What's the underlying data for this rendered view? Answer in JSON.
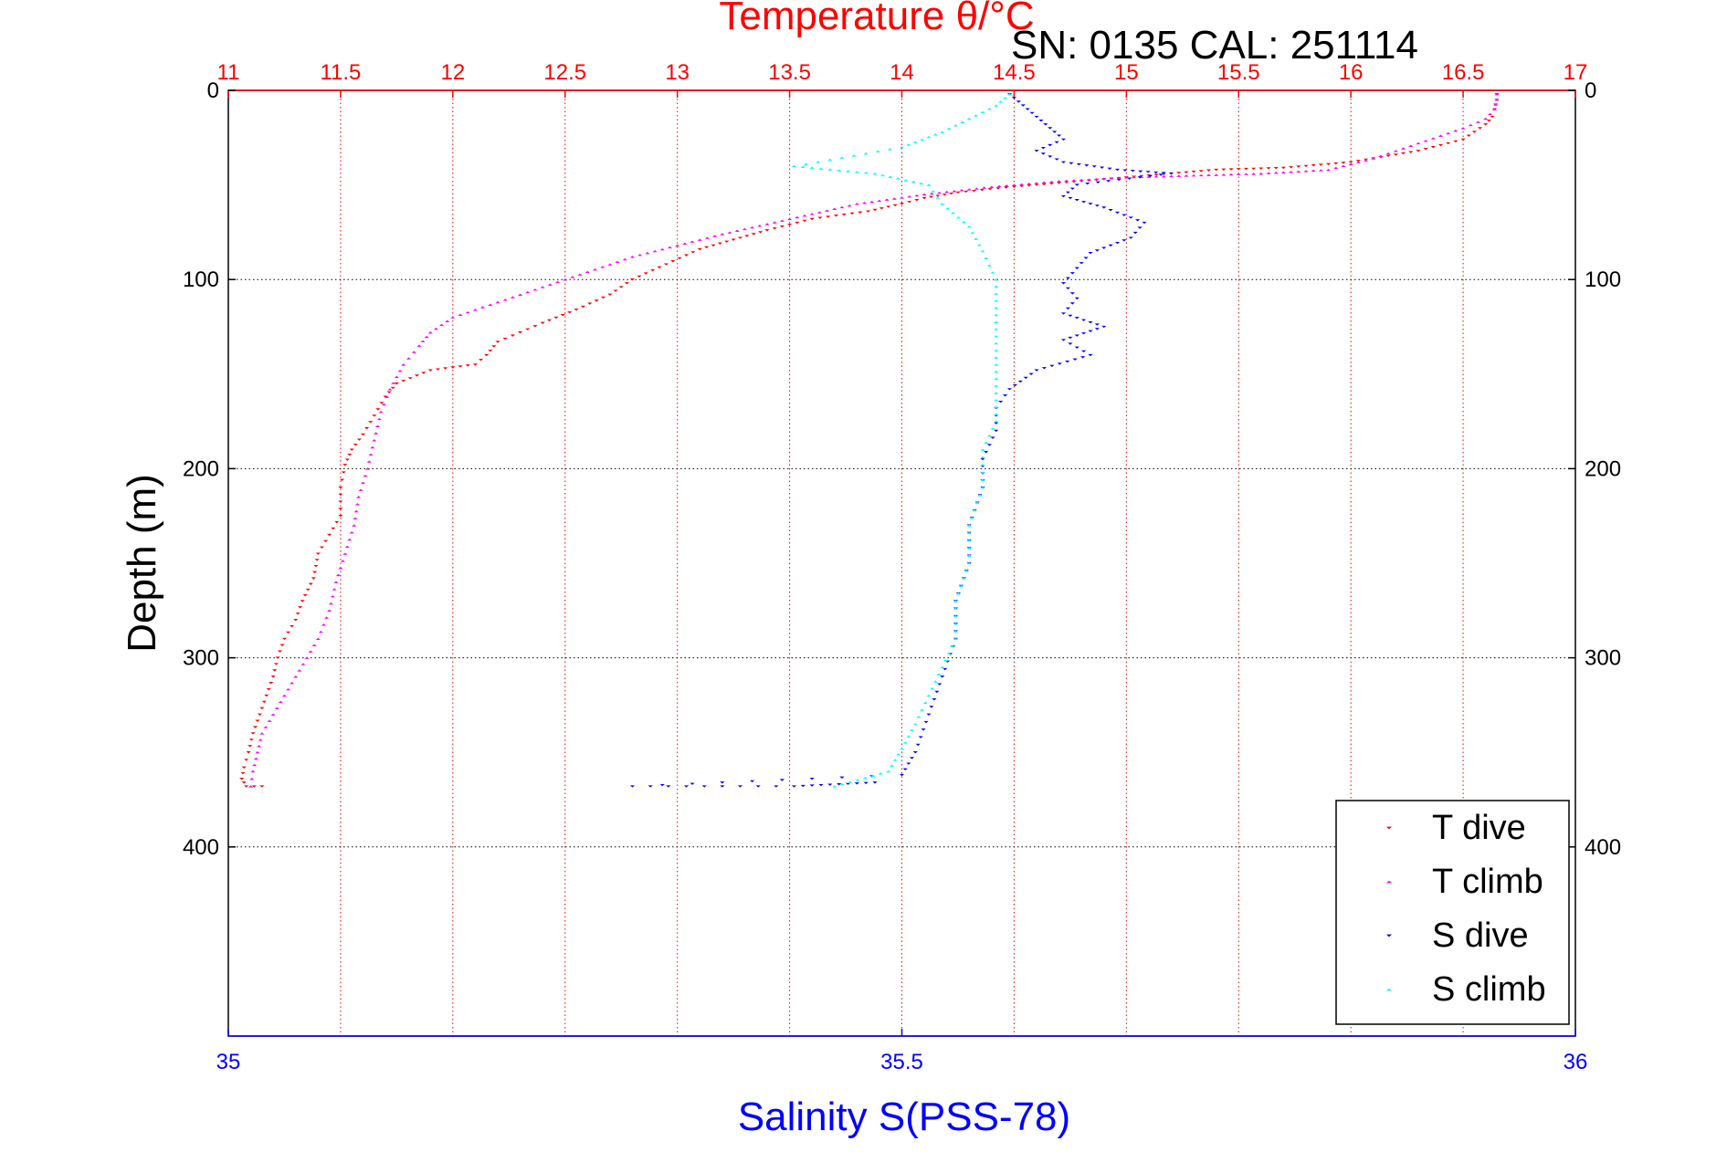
{
  "chart_data": {
    "type": "scatter",
    "title": "Temperature θ/°C",
    "subtitle": "SN: 0135  CAL: 251114",
    "xlabel_top": "Temperature θ/°C",
    "xlabel_bottom": "Salinity S(PSS-78)",
    "ylabel": "Depth (m)",
    "temperature_axis": {
      "range": [
        11,
        17
      ],
      "ticks": [
        11,
        11.5,
        12,
        12.5,
        13,
        13.5,
        14,
        14.5,
        15,
        15.5,
        16,
        16.5,
        17
      ],
      "tick_labels": [
        "11",
        "11.5",
        "12",
        "12.5",
        "13",
        "13.5",
        "14",
        "14.5",
        "15",
        "15.5",
        "16",
        "16.5",
        "17"
      ],
      "color": "#ff0000"
    },
    "salinity_axis": {
      "range": [
        35,
        36
      ],
      "ticks": [
        35,
        35.5,
        36
      ],
      "tick_labels": [
        "35",
        "35.5",
        "36"
      ],
      "color": "#0000ff"
    },
    "depth_axis": {
      "range": [
        0,
        500
      ],
      "reversed": true,
      "ticks": [
        0,
        100,
        200,
        300,
        400
      ],
      "tick_labels": [
        "0",
        "100",
        "200",
        "300",
        "400"
      ]
    },
    "grid": true,
    "legend_position": "bottom-right",
    "series": [
      {
        "name": "T dive",
        "axis": "temperature",
        "color": "#ff0000",
        "marker": "triangle-down",
        "points": [
          [
            16.65,
            2
          ],
          [
            16.65,
            5
          ],
          [
            16.64,
            10
          ],
          [
            16.63,
            14
          ],
          [
            16.6,
            18
          ],
          [
            16.55,
            22
          ],
          [
            16.5,
            26
          ],
          [
            16.3,
            32
          ],
          [
            16.0,
            38
          ],
          [
            15.7,
            41
          ],
          [
            15.4,
            42
          ],
          [
            15.1,
            45
          ],
          [
            14.8,
            48
          ],
          [
            14.5,
            51
          ],
          [
            14.25,
            54
          ],
          [
            14.1,
            57
          ],
          [
            14.0,
            60
          ],
          [
            13.85,
            64
          ],
          [
            13.6,
            68
          ],
          [
            13.4,
            74
          ],
          [
            13.25,
            79
          ],
          [
            13.1,
            84
          ],
          [
            12.95,
            92
          ],
          [
            12.8,
            100
          ],
          [
            12.7,
            108
          ],
          [
            12.55,
            116
          ],
          [
            12.4,
            123
          ],
          [
            12.3,
            128
          ],
          [
            12.2,
            133
          ],
          [
            12.15,
            140
          ],
          [
            12.1,
            145
          ],
          [
            11.9,
            148
          ],
          [
            11.75,
            155
          ],
          [
            11.7,
            162
          ],
          [
            11.65,
            172
          ],
          [
            11.6,
            182
          ],
          [
            11.55,
            190
          ],
          [
            11.52,
            198
          ],
          [
            11.5,
            210
          ],
          [
            11.5,
            225
          ],
          [
            11.45,
            235
          ],
          [
            11.4,
            245
          ],
          [
            11.38,
            258
          ],
          [
            11.33,
            270
          ],
          [
            11.3,
            280
          ],
          [
            11.25,
            290
          ],
          [
            11.22,
            300
          ],
          [
            11.2,
            310
          ],
          [
            11.17,
            320
          ],
          [
            11.14,
            330
          ],
          [
            11.11,
            340
          ],
          [
            11.09,
            350
          ],
          [
            11.07,
            358
          ],
          [
            11.06,
            364
          ],
          [
            11.08,
            368
          ],
          [
            11.15,
            368
          ]
        ]
      },
      {
        "name": "T climb",
        "axis": "temperature",
        "color": "#ff00ff",
        "marker": "triangle-up",
        "points": [
          [
            11.1,
            368
          ],
          [
            11.11,
            360
          ],
          [
            11.13,
            350
          ],
          [
            11.15,
            340
          ],
          [
            11.2,
            330
          ],
          [
            11.25,
            320
          ],
          [
            11.3,
            310
          ],
          [
            11.35,
            300
          ],
          [
            11.4,
            290
          ],
          [
            11.45,
            275
          ],
          [
            11.48,
            260
          ],
          [
            11.52,
            245
          ],
          [
            11.56,
            230
          ],
          [
            11.58,
            215
          ],
          [
            11.62,
            200
          ],
          [
            11.65,
            185
          ],
          [
            11.68,
            170
          ],
          [
            11.72,
            158
          ],
          [
            11.78,
            145
          ],
          [
            11.85,
            135
          ],
          [
            11.9,
            128
          ],
          [
            12.0,
            120
          ],
          [
            12.2,
            112
          ],
          [
            12.4,
            104
          ],
          [
            12.6,
            96
          ],
          [
            12.8,
            88
          ],
          [
            13.0,
            82
          ],
          [
            13.2,
            76
          ],
          [
            13.5,
            68
          ],
          [
            13.8,
            60
          ],
          [
            14.1,
            55
          ],
          [
            14.4,
            51
          ],
          [
            14.7,
            48
          ],
          [
            15.0,
            46
          ],
          [
            15.3,
            45
          ],
          [
            15.6,
            44
          ],
          [
            15.9,
            42
          ],
          [
            16.1,
            36
          ],
          [
            16.3,
            28
          ],
          [
            16.5,
            20
          ],
          [
            16.6,
            15
          ],
          [
            16.64,
            10
          ],
          [
            16.65,
            5
          ],
          [
            16.65,
            2
          ]
        ]
      },
      {
        "name": "S dive",
        "axis": "salinity",
        "color": "#0000ff",
        "marker": "triangle-down",
        "points": [
          [
            35.58,
            2
          ],
          [
            35.59,
            8
          ],
          [
            35.6,
            14
          ],
          [
            35.61,
            20
          ],
          [
            35.62,
            26
          ],
          [
            35.6,
            32
          ],
          [
            35.62,
            38
          ],
          [
            35.66,
            42
          ],
          [
            35.7,
            44
          ],
          [
            35.63,
            50
          ],
          [
            35.62,
            56
          ],
          [
            35.65,
            62
          ],
          [
            35.68,
            70
          ],
          [
            35.67,
            78
          ],
          [
            35.64,
            86
          ],
          [
            35.63,
            94
          ],
          [
            35.62,
            102
          ],
          [
            35.63,
            110
          ],
          [
            35.62,
            118
          ],
          [
            35.65,
            125
          ],
          [
            35.62,
            132
          ],
          [
            35.64,
            140
          ],
          [
            35.6,
            148
          ],
          [
            35.58,
            158
          ],
          [
            35.57,
            168
          ],
          [
            35.57,
            180
          ],
          [
            35.56,
            195
          ],
          [
            35.56,
            210
          ],
          [
            35.55,
            230
          ],
          [
            35.55,
            250
          ],
          [
            35.54,
            270
          ],
          [
            35.54,
            290
          ],
          [
            35.53,
            310
          ],
          [
            35.52,
            330
          ],
          [
            35.51,
            350
          ],
          [
            35.5,
            362
          ],
          [
            35.3,
            368
          ],
          [
            35.42,
            368
          ],
          [
            35.48,
            366
          ]
        ]
      },
      {
        "name": "S climb",
        "axis": "salinity",
        "color": "#00ffff",
        "marker": "triangle-up",
        "points": [
          [
            35.45,
            368
          ],
          [
            35.49,
            360
          ],
          [
            35.5,
            348
          ],
          [
            35.51,
            335
          ],
          [
            35.52,
            320
          ],
          [
            35.53,
            305
          ],
          [
            35.54,
            290
          ],
          [
            35.54,
            270
          ],
          [
            35.55,
            250
          ],
          [
            35.55,
            230
          ],
          [
            35.56,
            210
          ],
          [
            35.56,
            190
          ],
          [
            35.57,
            175
          ],
          [
            35.57,
            160
          ],
          [
            35.57,
            145
          ],
          [
            35.57,
            130
          ],
          [
            35.57,
            115
          ],
          [
            35.57,
            100
          ],
          [
            35.56,
            85
          ],
          [
            35.55,
            72
          ],
          [
            35.53,
            60
          ],
          [
            35.52,
            50
          ],
          [
            35.48,
            44
          ],
          [
            35.42,
            40
          ],
          [
            35.5,
            30
          ],
          [
            35.53,
            22
          ],
          [
            35.55,
            15
          ],
          [
            35.57,
            8
          ],
          [
            35.58,
            2
          ]
        ]
      }
    ],
    "legend": [
      "T dive",
      "T climb",
      "S dive",
      "S climb"
    ]
  }
}
